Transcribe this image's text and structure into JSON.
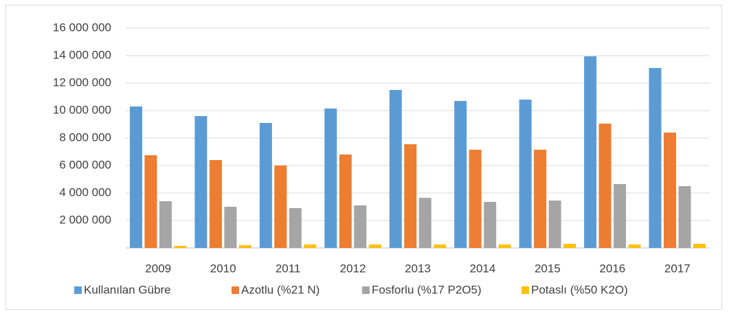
{
  "chart_data": {
    "type": "bar",
    "categories": [
      "2009",
      "2010",
      "2011",
      "2012",
      "2013",
      "2014",
      "2015",
      "2016",
      "2017"
    ],
    "series": [
      {
        "name": "Kullanılan Gübre",
        "color": "#5b9bd5",
        "values": [
          10300000,
          9600000,
          9100000,
          10150000,
          11500000,
          10700000,
          10800000,
          13950000,
          13100000
        ]
      },
      {
        "name": "Azotlu (%21 N)",
        "color": "#ed7d31",
        "values": [
          6750000,
          6400000,
          6000000,
          6800000,
          7550000,
          7150000,
          7150000,
          9050000,
          8400000
        ]
      },
      {
        "name": "Fosforlu (%17 P2O5)",
        "color": "#a5a5a5",
        "values": [
          3400000,
          3000000,
          2900000,
          3100000,
          3650000,
          3350000,
          3450000,
          4650000,
          4500000
        ]
      },
      {
        "name": "Potaslı (%50 K2O)",
        "color": "#ffc000",
        "values": [
          150000,
          200000,
          250000,
          250000,
          250000,
          250000,
          300000,
          250000,
          300000
        ]
      }
    ],
    "ylim": [
      0,
      16000000
    ],
    "yticks": [
      {
        "value": 2000000,
        "label": "2 000 000"
      },
      {
        "value": 4000000,
        "label": "4 000 000"
      },
      {
        "value": 6000000,
        "label": "6 000 000"
      },
      {
        "value": 8000000,
        "label": "8 000 000"
      },
      {
        "value": 10000000,
        "label": "10 000 000"
      },
      {
        "value": 12000000,
        "label": "12 000 000"
      },
      {
        "value": 14000000,
        "label": "14 000 000"
      },
      {
        "value": 16000000,
        "label": "16 000 000"
      }
    ],
    "grid": true,
    "legend": "bottom"
  }
}
